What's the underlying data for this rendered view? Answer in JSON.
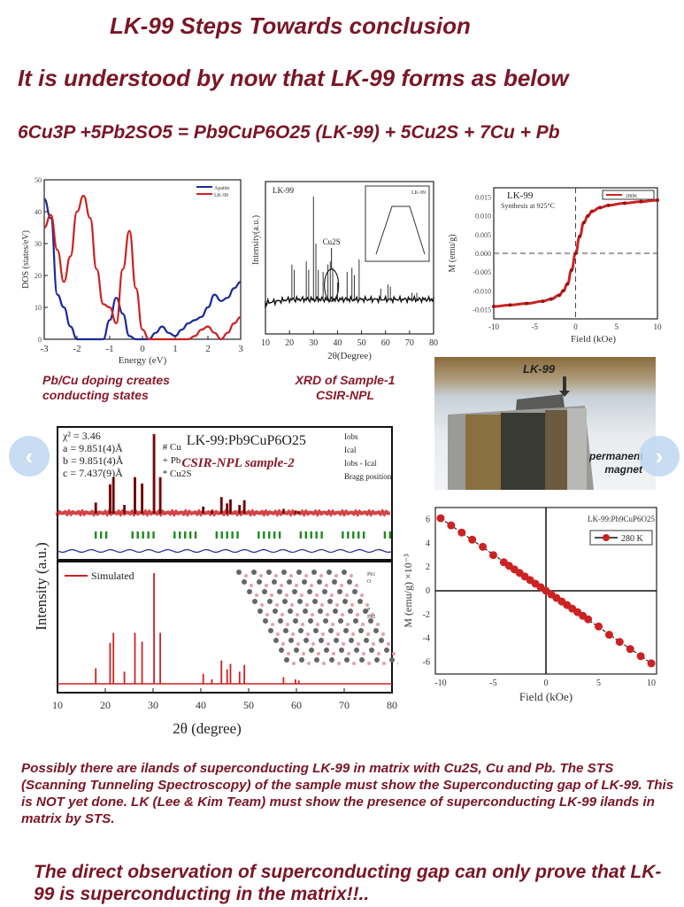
{
  "header": {
    "title": "LK-99 Steps Towards conclusion",
    "subtitle": "It is understood by now that LK-99 forms as below",
    "equation": "6Cu3P +5Pb2SO5 = Pb9CuP6O25 (LK-99) + 5Cu2S + 7Cu + Pb"
  },
  "captions": {
    "dos": [
      "Pb/Cu doping creates",
      "conducting states"
    ],
    "xrd": [
      "XRD of Sample-1",
      "CSIR-NPL"
    ]
  },
  "photo": {
    "label_top": "LK-99",
    "label_side": [
      "permanent",
      "magnet"
    ]
  },
  "nav": {
    "prev": "‹",
    "next": "›",
    "prev_icon": "chevron-left-icon",
    "next_icon": "chevron-right-icon"
  },
  "paragraph": "Possibly there are ilands of superconducting LK-99 in matrix with Cu2S, Cu and Pb. The STS (Scanning Tunneling Spectroscopy) of the sample must show the Superconducting gap of LK-99. This is NOT yet done. LK (Lee & Kim Team) must show the presence of superconducting LK-99 ilands in matrix by STS.",
  "conclusion": "The direct observation of superconducting gap can only prove that LK-99 is superconducting in the matrix!!..",
  "colors": {
    "text_maroon": "#7a1626",
    "red_series": "#cc2222",
    "blue_series": "#1a2a9a",
    "green_bragg": "#1f8a1f",
    "nav_button": "#bed7f0"
  },
  "chart_data": [
    {
      "type": "line",
      "title": "",
      "xlabel": "Energy (eV)",
      "ylabel": "DOS (states/eV)",
      "xlim": [
        -3,
        3
      ],
      "ylim": [
        0,
        50
      ],
      "xticks": [
        -3,
        -2,
        -1,
        0,
        1,
        2,
        3
      ],
      "yticks": [
        0,
        10,
        20,
        30,
        40,
        50
      ],
      "legend": [
        "Apatite",
        "LK-99"
      ],
      "legend_position": "top-right",
      "x": [
        -3.0,
        -2.8,
        -2.6,
        -2.4,
        -2.2,
        -2.0,
        -1.8,
        -1.6,
        -1.4,
        -1.2,
        -1.0,
        -0.8,
        -0.6,
        -0.4,
        -0.2,
        0.0,
        0.2,
        0.4,
        0.6,
        0.8,
        1.0,
        1.2,
        1.4,
        1.6,
        1.8,
        2.0,
        2.2,
        2.4,
        2.6,
        2.8,
        3.0
      ],
      "series": [
        {
          "name": "Apatite",
          "color": "#1a2a9a",
          "values": [
            44,
            38,
            14,
            10,
            4,
            0,
            0,
            0,
            0,
            0,
            6,
            13,
            8,
            1,
            0,
            0,
            0,
            2,
            4,
            2,
            1,
            3,
            5,
            6,
            7,
            10,
            14,
            12,
            13,
            16,
            18
          ]
        },
        {
          "name": "LK-99",
          "color": "#cc2222",
          "values": [
            35,
            39,
            28,
            18,
            26,
            40,
            45,
            38,
            22,
            11,
            10,
            5,
            22,
            34,
            16,
            3,
            0,
            0,
            0,
            0,
            0,
            0,
            0,
            1,
            3,
            4,
            2,
            0,
            2,
            5,
            7
          ]
        }
      ]
    },
    {
      "type": "line",
      "title": "LK-99",
      "xlabel": "2θ(Degree)",
      "ylabel": "Intensity(a.u.)",
      "xlim": [
        10,
        80
      ],
      "xticks": [
        10,
        20,
        30,
        40,
        50,
        60,
        70,
        80
      ],
      "annotations": [
        "Cu2S",
        "inset: T(°C) vs Time (h), 925, 30"
      ],
      "peaks_2theta": [
        21,
        22,
        27,
        28,
        30,
        31,
        32,
        34,
        36,
        37,
        38,
        40,
        44,
        46,
        47,
        49,
        58,
        61,
        62,
        71,
        73
      ],
      "peak_heights_rel": [
        0.35,
        0.3,
        0.38,
        0.3,
        1.0,
        0.55,
        0.3,
        0.28,
        0.35,
        0.38,
        0.32,
        0.18,
        0.28,
        0.32,
        0.25,
        0.4,
        0.12,
        0.16,
        0.14,
        0.08,
        0.08
      ]
    },
    {
      "type": "line",
      "title": "LK-99 Synthesis at 925°C",
      "xlabel": "Field (kOe)",
      "ylabel": "M (emu/g)",
      "xlim": [
        -10,
        10
      ],
      "ylim": [
        -0.0175,
        0.0175
      ],
      "xticks": [
        -10,
        -5,
        0,
        5,
        10
      ],
      "yticks": [
        -0.015,
        -0.01,
        -0.005,
        0.0,
        0.005,
        0.01,
        0.015
      ],
      "legend": [
        "280K"
      ],
      "x": [
        -10,
        -8,
        -6,
        -4,
        -3,
        -2,
        -1.5,
        -1,
        -0.5,
        0,
        0.5,
        1,
        1.5,
        2,
        3,
        4,
        6,
        8,
        10
      ],
      "series": [
        {
          "name": "280K",
          "color": "#cc2222",
          "values": [
            -0.0142,
            -0.0138,
            -0.0134,
            -0.0128,
            -0.0122,
            -0.0112,
            -0.01,
            -0.0082,
            -0.0045,
            0.0,
            0.0045,
            0.0082,
            0.01,
            0.0112,
            0.0122,
            0.0128,
            0.0134,
            0.0138,
            0.0142
          ]
        }
      ]
    },
    {
      "type": "line",
      "title": "LK-99:Pb9CuP6O25 CSIR-NPL sample-2",
      "xlabel": "2θ (degree)",
      "ylabel": "Intensity (a.u.)",
      "xlim": [
        10,
        80
      ],
      "xticks": [
        10,
        20,
        30,
        40,
        50,
        60,
        70,
        80
      ],
      "annotations": [
        "χ² = 3.46",
        "a = 9.851(4)Å",
        "b = 9.851(4)Å",
        "c = 7.437(9)Å",
        "# Cu",
        "+ Pb",
        "* Cu2S"
      ],
      "legend": [
        "Iobs",
        "Ical",
        "Iobs - Ical",
        "Bragg position"
      ],
      "miller_indices": [
        "(110)",
        "(200)",
        "(111)",
        "(201)",
        "(112)",
        "(120)",
        "(112)",
        "(300)",
        "(113)",
        "(222)",
        "(123)",
        "(042)",
        "(124)",
        "(502)",
        "(151)",
        "(125)",
        "(144)",
        "(161)"
      ],
      "simulated": {
        "legend": "Simulated",
        "peaks_2theta": [
          18,
          21,
          21.7,
          24,
          26.2,
          27.7,
          30.2,
          31.5,
          40.5,
          42.3,
          44.3,
          45.5,
          46.2,
          48.1,
          49.1,
          57.3,
          59.8,
          60.5
        ],
        "peak_heights_rel": [
          0.14,
          0.37,
          0.46,
          0.11,
          0.46,
          0.38,
          1.0,
          0.46,
          0.09,
          0.04,
          0.21,
          0.13,
          0.18,
          0.11,
          0.17,
          0.06,
          0.04,
          0.03
        ]
      },
      "structure_labels": [
        "Pb1",
        "O",
        "P",
        "Pb2"
      ]
    },
    {
      "type": "scatter",
      "title": "LK-99:Pb9CuP6O25",
      "xlabel": "Field (kOe)",
      "ylabel": "M (emu/g) ×10⁻³",
      "xlim": [
        -10.5,
        10.5
      ],
      "ylim": [
        -7,
        7
      ],
      "xticks": [
        -10,
        -5,
        0,
        5,
        10
      ],
      "yticks": [
        -6,
        -4,
        -2,
        0,
        2,
        4,
        6
      ],
      "legend": [
        "280 K"
      ],
      "x": [
        -10,
        -9,
        -8,
        -7,
        -6,
        -5,
        -4,
        -3.5,
        -3,
        -2.5,
        -2,
        -1.5,
        -1,
        -0.5,
        0,
        0.5,
        1,
        1.5,
        2,
        2.5,
        3,
        3.5,
        4,
        5,
        6,
        7,
        8,
        9,
        10
      ],
      "series": [
        {
          "name": "280 K",
          "color": "#cc2222",
          "values": [
            6.1,
            5.5,
            4.9,
            4.3,
            3.7,
            3.0,
            2.4,
            2.1,
            1.8,
            1.5,
            1.2,
            0.9,
            0.6,
            0.3,
            0.0,
            -0.3,
            -0.6,
            -0.9,
            -1.2,
            -1.5,
            -1.8,
            -2.1,
            -2.4,
            -3.0,
            -3.7,
            -4.3,
            -4.9,
            -5.5,
            -6.1
          ]
        }
      ]
    }
  ]
}
